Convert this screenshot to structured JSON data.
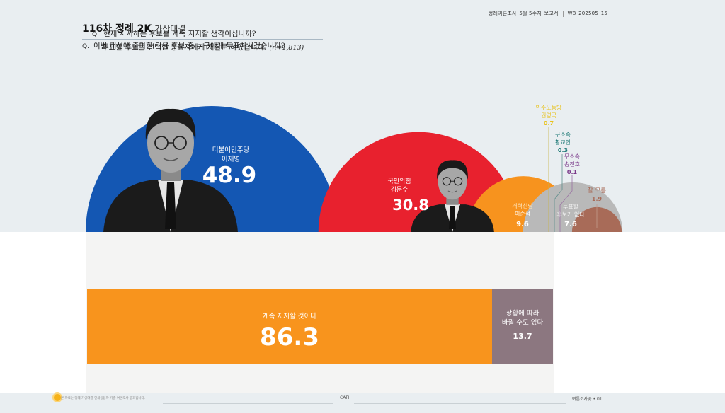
{
  "header": {
    "report": "정례여론조사_5월 5주차_보고서",
    "code": "W8_202505_15"
  },
  "title": {
    "main": "116차 정례 2K",
    "sub": "가상대결"
  },
  "question1": {
    "mark": "Q.",
    "text": "이번 대선에 출마한 다음 후보 중 누구에게 투표하시겠습니까?"
  },
  "question2": {
    "mark": "Q.",
    "line1": "현재 지지하는 후보를 계속 지지할 생각이십니까?",
    "line2": "투표할 후보를 선택한 응답자에게 재질문 하였습니다.",
    "n": "(n=1,813)"
  },
  "colors": {
    "dem": "#1457b3",
    "ppp": "#e8212e",
    "reform": "#f7931e",
    "labor": "#e8c21b",
    "ind1": "#1e7a77",
    "ind2": "#7a3a8a",
    "none": "#b9b9b9",
    "dk": "#a86b58",
    "keep": "#f8941d",
    "change": "#8c7780"
  },
  "chart_data": [
    {
      "type": "pie",
      "series": [
        {
          "party": "더불어민주당",
          "name": "이재명",
          "value": 48.9,
          "label": "48.9"
        },
        {
          "party": "국민의힘",
          "name": "김문수",
          "value": 30.8,
          "label": "30.8"
        },
        {
          "party": "개혁신당",
          "name": "이준석",
          "value": 9.6,
          "label": "9.6"
        },
        {
          "party": "민주노동당",
          "name": "권영국",
          "value": 0.7,
          "label": "0.7"
        },
        {
          "party": "무소속",
          "name": "황교안",
          "value": 0.3,
          "label": "0.3"
        },
        {
          "party": "무소속",
          "name": "송진호",
          "value": 0.1,
          "label": "0.1"
        },
        {
          "party": "투표할",
          "name": "후보가 없다",
          "value": 7.6,
          "label": "7.6"
        },
        {
          "party": "",
          "name": "잘 모름",
          "value": 1.9,
          "label": "1.9"
        }
      ]
    },
    {
      "type": "bar",
      "categories": [
        "계속 지지할 것이다",
        "상황에 따라 바뀔 수도 있다"
      ],
      "values": [
        86.3,
        13.7
      ],
      "labels": [
        "86.3",
        "13.7"
      ]
    }
  ],
  "footer": {
    "note": "본 자료는 정례 가상대결 전체응답자 기준 여론조사 결과입니다.",
    "method": "CATI",
    "brand": "여론조사꽃 • 01"
  }
}
